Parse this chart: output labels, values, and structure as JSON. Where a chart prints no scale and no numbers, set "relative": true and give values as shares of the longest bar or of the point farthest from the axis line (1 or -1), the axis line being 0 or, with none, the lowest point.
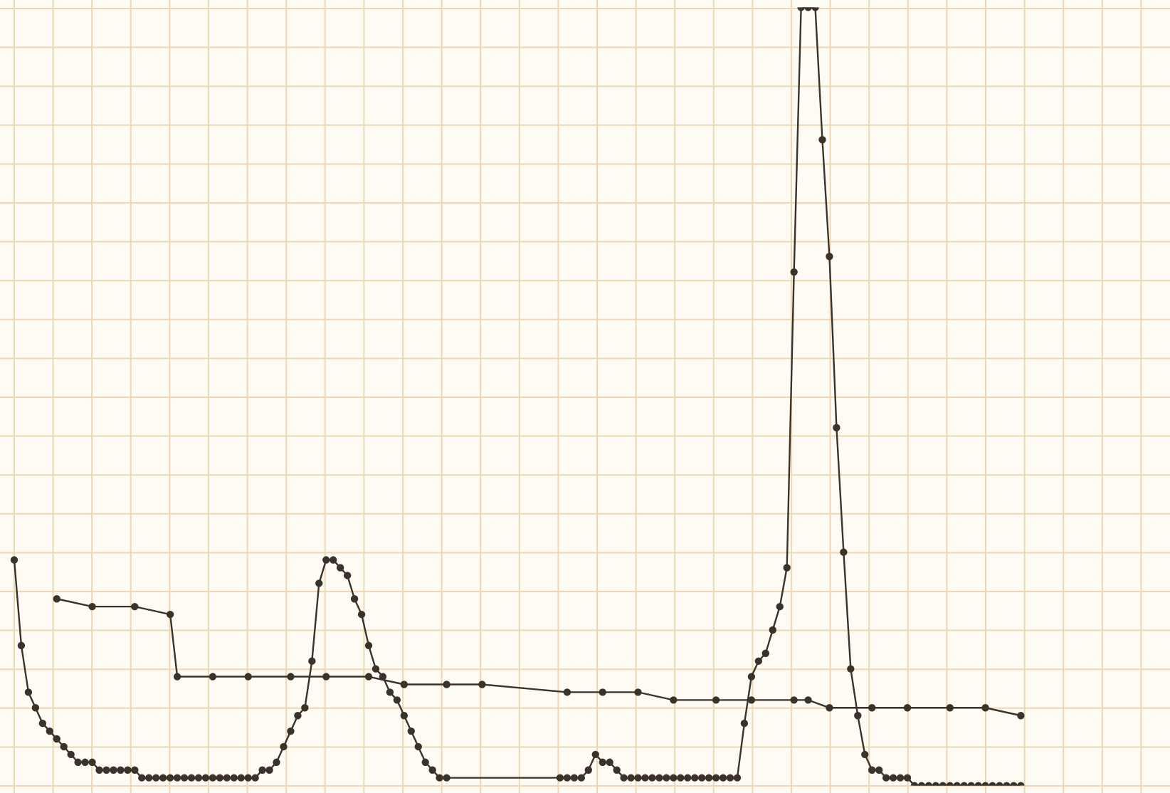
{
  "chart_data": {
    "type": "line",
    "relative": true,
    "grid": true,
    "tick_labels": false,
    "marker": "circle",
    "line_style": "solid",
    "categories": [
      null,
      null,
      null,
      null,
      null,
      null,
      null,
      null,
      null,
      null,
      null,
      null,
      null,
      null,
      null,
      null,
      null,
      null,
      null,
      null,
      null,
      null,
      null,
      null,
      null,
      null,
      null,
      null,
      null,
      null,
      null,
      null,
      null,
      null,
      null,
      null,
      null,
      null,
      null,
      null,
      null,
      null,
      null,
      null,
      null,
      null,
      null,
      null,
      null,
      null,
      null,
      null,
      null,
      null,
      null,
      null,
      null,
      null,
      null,
      null,
      null,
      null,
      null,
      null,
      null,
      null,
      null,
      null,
      null,
      null,
      null,
      null,
      null,
      null,
      null,
      null,
      null,
      null,
      null,
      null,
      null,
      null,
      null,
      null,
      null,
      null,
      null,
      null,
      null,
      null,
      null,
      null,
      null,
      null,
      null,
      null,
      null,
      null,
      null,
      null,
      null,
      null,
      null,
      null,
      null,
      null,
      null,
      null,
      null,
      null,
      null,
      null,
      null,
      null,
      null,
      null,
      null,
      null,
      null,
      null,
      null,
      null,
      null,
      null,
      null,
      null,
      null,
      null,
      null,
      null,
      null,
      null,
      null,
      null,
      null,
      null,
      null,
      null,
      null,
      null,
      null,
      null,
      null,
      null,
      null,
      null,
      null,
      null,
      null,
      null,
      null,
      null,
      null,
      null,
      null,
      null,
      null,
      null,
      null,
      null,
      null,
      null,
      null
    ],
    "series": [
      {
        "color": "#3b322a",
        "values": [
          0.29,
          0.18,
          0.12,
          0.1,
          0.08,
          0.07,
          0.06,
          0.05,
          0.04,
          0.03,
          0.03,
          0.03,
          0.02,
          0.02,
          0.02,
          0.02,
          0.02,
          0.02,
          0.01,
          0.01,
          0.01,
          0.01,
          0.01,
          0.01,
          0.01,
          0.01,
          0.01,
          0.01,
          0.01,
          0.01,
          0.01,
          0.01,
          0.01,
          0.01,
          0.01,
          0.02,
          0.02,
          0.03,
          0.05,
          0.07,
          0.09,
          0.1,
          0.16,
          0.26,
          0.29,
          0.29,
          0.28,
          0.27,
          0.24,
          0.22,
          0.18,
          0.15,
          0.14,
          0.12,
          0.11,
          0.09,
          0.07,
          0.05,
          0.03,
          0.02,
          0.01,
          0.01,
          null,
          null,
          null,
          null,
          null,
          null,
          null,
          null,
          null,
          null,
          null,
          null,
          null,
          null,
          null,
          0.01,
          0.01,
          0.01,
          0.01,
          0.02,
          0.04,
          0.03,
          0.03,
          0.02,
          0.01,
          0.01,
          0.01,
          0.01,
          0.01,
          0.01,
          0.01,
          0.01,
          0.01,
          0.01,
          0.01,
          0.01,
          0.01,
          0.01,
          0.01,
          0.01,
          0.01,
          0.08,
          0.14,
          0.16,
          0.17,
          0.2,
          0.23,
          0.28,
          0.66,
          1,
          1,
          1,
          0.83,
          0.68,
          0.46,
          0.3,
          0.15,
          0.09,
          0.04,
          0.02,
          0.02,
          0.01,
          0.01,
          0.01,
          0.01,
          0,
          0,
          0,
          0,
          0,
          0,
          0,
          0,
          0,
          0,
          0,
          0,
          0,
          0,
          0,
          0,
          null,
          null,
          null,
          null,
          null,
          null,
          null,
          null,
          null,
          null,
          null,
          null,
          null,
          null,
          null,
          null,
          null,
          null,
          null,
          null
        ]
      },
      {
        "color": "#3b322a",
        "values": [
          null,
          null,
          null,
          null,
          null,
          null,
          0.24,
          null,
          null,
          null,
          null,
          0.23,
          null,
          null,
          null,
          null,
          null,
          0.23,
          null,
          null,
          null,
          null,
          0.22,
          0.14,
          null,
          null,
          null,
          null,
          0.14,
          null,
          null,
          null,
          null,
          0.14,
          null,
          null,
          null,
          null,
          null,
          0.14,
          null,
          null,
          null,
          null,
          0.14,
          null,
          null,
          null,
          null,
          null,
          0.14,
          null,
          null,
          null,
          null,
          0.13,
          null,
          null,
          null,
          null,
          null,
          0.13,
          null,
          null,
          null,
          null,
          0.13,
          null,
          null,
          null,
          null,
          null,
          null,
          null,
          null,
          null,
          null,
          null,
          0.12,
          null,
          null,
          null,
          null,
          0.12,
          null,
          null,
          null,
          null,
          0.12,
          null,
          null,
          null,
          null,
          0.11,
          null,
          null,
          null,
          null,
          null,
          0.11,
          null,
          null,
          null,
          null,
          0.11,
          null,
          null,
          null,
          null,
          null,
          0.11,
          null,
          0.11,
          null,
          null,
          0.1,
          null,
          null,
          null,
          null,
          null,
          0.1,
          null,
          null,
          null,
          null,
          0.1,
          null,
          null,
          null,
          null,
          null,
          0.1,
          null,
          null,
          null,
          null,
          0.1,
          null,
          null,
          null,
          null,
          0.09,
          null,
          null,
          null,
          null,
          null,
          null,
          null,
          null,
          null,
          null,
          null,
          null,
          null,
          null,
          null,
          null,
          null,
          null,
          null,
          null
        ]
      }
    ]
  }
}
